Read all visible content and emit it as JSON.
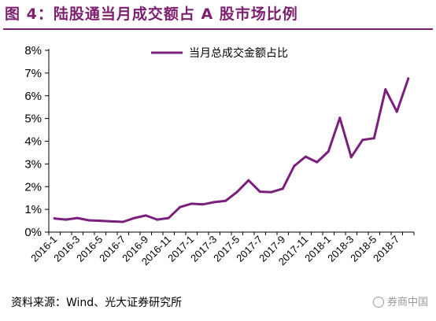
{
  "header": {
    "title": "图 4：陆股通当月成交额占 A 股市场比例"
  },
  "footer": {
    "source": "资料来源：Wind、光大证券研究所",
    "watermark": "券商中国"
  },
  "colors": {
    "accent": "#7b1f6e",
    "series": "#7a1f7c"
  },
  "chart_data": {
    "type": "line",
    "title": "图 4：陆股通当月成交额占 A 股市场比例",
    "xlabel": "",
    "ylabel": "",
    "x": [
      "2016-1",
      "2016-2",
      "2016-3",
      "2016-4",
      "2016-5",
      "2016-6",
      "2016-7",
      "2016-8",
      "2016-9",
      "2016-10",
      "2016-11",
      "2016-12",
      "2017-1",
      "2017-2",
      "2017-3",
      "2017-4",
      "2017-5",
      "2017-6",
      "2017-7",
      "2017-8",
      "2017-9",
      "2017-10",
      "2017-11",
      "2017-12",
      "2018-1",
      "2018-2",
      "2018-3",
      "2018-4",
      "2018-5",
      "2018-6",
      "2018-7",
      "2018-8"
    ],
    "x_tick_labels": [
      "2016-1",
      "2016-3",
      "2016-5",
      "2016-7",
      "2016-9",
      "2016-11",
      "2017-1",
      "2017-3",
      "2017-5",
      "2017-7",
      "2017-9",
      "2017-11",
      "2018-1",
      "2018-3",
      "2018-5",
      "2018-7"
    ],
    "series": [
      {
        "name": "当月总成交金额占比",
        "values": [
          0.6,
          0.55,
          0.62,
          0.52,
          0.5,
          0.47,
          0.45,
          0.62,
          0.73,
          0.55,
          0.62,
          1.1,
          1.25,
          1.22,
          1.32,
          1.38,
          1.77,
          2.28,
          1.78,
          1.76,
          1.91,
          2.91,
          3.32,
          3.08,
          3.55,
          5.03,
          3.3,
          4.06,
          4.13,
          6.28,
          5.3,
          6.76
        ]
      }
    ],
    "ylim": [
      0,
      8
    ],
    "yticks": [
      0,
      1,
      2,
      3,
      4,
      5,
      6,
      7,
      8
    ],
    "ytick_labels": [
      "0%",
      "1%",
      "2%",
      "3%",
      "4%",
      "5%",
      "6%",
      "7%",
      "8%"
    ],
    "grid": false,
    "legend_position": "top"
  }
}
